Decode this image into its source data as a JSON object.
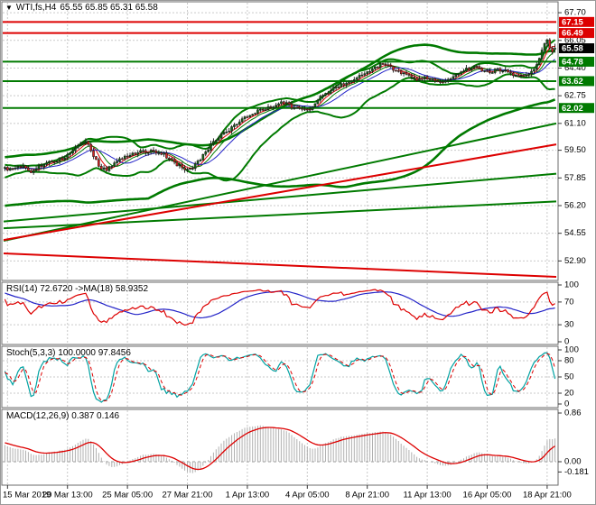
{
  "window": {
    "symbol": "WTI,fs,H4",
    "ohlc_text": "65.55 65.85 65.31 65.58"
  },
  "colors": {
    "red": "#dd0000",
    "green": "#007a00",
    "blue": "#2424c8",
    "teal": "#00a2a2",
    "candle_up": "#156515",
    "candle_down": "#d42424",
    "wick": "#1a1a1a",
    "grid": "#c9c9c9",
    "hist": "#b0b0b0",
    "badge_black": "#000000",
    "border": "#6b6b6b",
    "axis_text": "#000000"
  },
  "price_axis": {
    "gridline_labels": [
      "67.70",
      "66.05",
      "64.40",
      "62.75",
      "61.10",
      "59.50",
      "57.85",
      "56.20",
      "54.55",
      "52.90"
    ],
    "badges": [
      {
        "value": "67.15",
        "color": "red"
      },
      {
        "value": "66.49",
        "color": "red"
      },
      {
        "value": "65.58",
        "color": "badge_black"
      },
      {
        "value": "64.78",
        "color": "green"
      },
      {
        "value": "63.62",
        "color": "green"
      },
      {
        "value": "62.02",
        "color": "green"
      }
    ]
  },
  "time_axis": {
    "labels": [
      {
        "bar": 1,
        "label": "15 Mar 2019"
      },
      {
        "bar": 24,
        "label": "20 Mar 13:00"
      },
      {
        "bar": 47,
        "label": "25 Mar 05:00"
      },
      {
        "bar": 70,
        "label": "27 Mar 21:00"
      },
      {
        "bar": 93,
        "label": "1 Apr 13:00"
      },
      {
        "bar": 116,
        "label": "4 Apr 05:00"
      },
      {
        "bar": 139,
        "label": "8 Apr 21:00"
      },
      {
        "bar": 162,
        "label": "11 Apr 13:00"
      },
      {
        "bar": 185,
        "label": "16 Apr 05:00"
      },
      {
        "bar": 208,
        "label": "18 Apr 21:00"
      }
    ]
  },
  "chart_data": [
    {
      "type": "candlestick",
      "title": "WTI,fs,H4",
      "timeframe": "H4",
      "current_bar": {
        "open": 65.55,
        "high": 65.85,
        "low": 65.31,
        "close": 65.58
      },
      "visible_bars": 212,
      "prehistory_bars": 40,
      "y_range": [
        51.74,
        68.35
      ],
      "y_grid": [
        67.7,
        66.05,
        64.4,
        62.75,
        61.1,
        59.5,
        57.85,
        56.2,
        54.55,
        52.9
      ],
      "price_anchors": [
        [
          -40,
          56.1
        ],
        [
          -32,
          56.9
        ],
        [
          -24,
          57.6
        ],
        [
          -16,
          58.05
        ],
        [
          -8,
          58.35
        ],
        [
          0,
          58.45
        ],
        [
          3,
          58.3
        ],
        [
          6,
          58.55
        ],
        [
          10,
          58.25
        ],
        [
          14,
          58.6
        ],
        [
          18,
          58.85
        ],
        [
          22,
          59.0
        ],
        [
          25,
          59.25
        ],
        [
          28,
          59.85
        ],
        [
          31,
          60.1
        ],
        [
          33,
          59.55
        ],
        [
          36,
          58.5
        ],
        [
          39,
          58.35
        ],
        [
          42,
          58.75
        ],
        [
          45,
          59.0
        ],
        [
          48,
          59.15
        ],
        [
          51,
          59.45
        ],
        [
          54,
          59.35
        ],
        [
          57,
          59.45
        ],
        [
          61,
          59.25
        ],
        [
          65,
          58.75
        ],
        [
          68,
          58.45
        ],
        [
          71,
          58.35
        ],
        [
          74,
          58.85
        ],
        [
          77,
          59.35
        ],
        [
          80,
          60.05
        ],
        [
          84,
          60.5
        ],
        [
          88,
          60.95
        ],
        [
          92,
          61.4
        ],
        [
          95,
          61.7
        ],
        [
          98,
          61.9
        ],
        [
          101,
          62.0
        ],
        [
          104,
          62.2
        ],
        [
          107,
          62.35
        ],
        [
          110,
          62.1
        ],
        [
          113,
          61.95
        ],
        [
          116,
          61.85
        ],
        [
          118,
          62.0
        ],
        [
          120,
          62.5
        ],
        [
          123,
          62.9
        ],
        [
          126,
          63.15
        ],
        [
          129,
          63.4
        ],
        [
          133,
          63.7
        ],
        [
          137,
          64.0
        ],
        [
          140,
          64.3
        ],
        [
          144,
          64.6
        ],
        [
          147,
          64.5
        ],
        [
          150,
          64.25
        ],
        [
          153,
          64.05
        ],
        [
          156,
          63.85
        ],
        [
          159,
          63.7
        ],
        [
          162,
          63.85
        ],
        [
          165,
          63.7
        ],
        [
          168,
          63.6
        ],
        [
          171,
          63.85
        ],
        [
          174,
          64.1
        ],
        [
          177,
          64.3
        ],
        [
          180,
          64.45
        ],
        [
          183,
          64.3
        ],
        [
          186,
          64.1
        ],
        [
          189,
          64.35
        ],
        [
          192,
          64.2
        ],
        [
          195,
          64.0
        ],
        [
          198,
          63.9
        ],
        [
          201,
          64.1
        ],
        [
          203,
          64.35
        ],
        [
          205,
          65.0
        ],
        [
          207,
          65.85
        ],
        [
          208,
          66.0
        ],
        [
          209,
          65.6
        ],
        [
          210,
          65.45
        ],
        [
          211,
          65.58
        ]
      ],
      "levels": [
        {
          "price": 67.15,
          "color": "red"
        },
        {
          "price": 66.49,
          "color": "red"
        },
        {
          "price": 64.78,
          "color": "green"
        },
        {
          "price": 63.62,
          "color": "green"
        },
        {
          "price": 62.02,
          "color": "green"
        }
      ],
      "trendlines": [
        {
          "x1": 0,
          "p1": 54.1,
          "x2": 1,
          "p2": 61.1,
          "color": "green"
        },
        {
          "x1": 0,
          "p1": 55.25,
          "x2": 1,
          "p2": 58.1,
          "color": "green"
        },
        {
          "x1": 0,
          "p1": 54.85,
          "x2": 1,
          "p2": 56.45,
          "color": "green"
        },
        {
          "x1": 0,
          "p1": 54.15,
          "x2": 1,
          "p2": 59.85,
          "color": "red"
        },
        {
          "x1": 0,
          "p1": 53.35,
          "x2": 1,
          "p2": 51.95,
          "color": "red"
        }
      ],
      "bollinger": [
        {
          "window": 20,
          "k": 2,
          "width": 2
        },
        {
          "window": 96,
          "k": 2,
          "width": 2.6
        }
      ],
      "moving_averages": [
        {
          "window": 5,
          "color": "red"
        },
        {
          "window": 8,
          "color": "green"
        },
        {
          "window": 13,
          "color": "blue"
        }
      ]
    },
    {
      "type": "line",
      "name": "RSI",
      "label": "RSI(14) 72.6720 ->MA(18) 58.9352",
      "period": 14,
      "ma_period": 18,
      "current": 72.672,
      "ma_current": 58.9352,
      "axis_labels": [
        "100",
        "70",
        "30",
        "0"
      ],
      "grid": [
        70,
        30
      ],
      "range": [
        0,
        100
      ]
    },
    {
      "type": "line",
      "name": "Stochastic",
      "label": "Stoch(5,3,3) 100.0000 97.8456",
      "k_current": 100.0,
      "d_current": 97.8456,
      "axis_labels": [
        "100",
        "80",
        "50",
        "20",
        "0"
      ],
      "grid": [
        80,
        50,
        20
      ],
      "range": [
        0,
        100
      ]
    },
    {
      "type": "macd",
      "name": "MACD",
      "label": "MACD(12,26,9) 0.387 0.146",
      "macd_current": 0.387,
      "signal_current": 0.146,
      "axis_labels": [
        {
          "text": "0.86",
          "value": 0.86
        },
        {
          "text": "0.00",
          "value": 0
        },
        {
          "text": "-0.181",
          "value": -0.181
        }
      ],
      "range": [
        -0.41,
        0.92
      ]
    }
  ]
}
